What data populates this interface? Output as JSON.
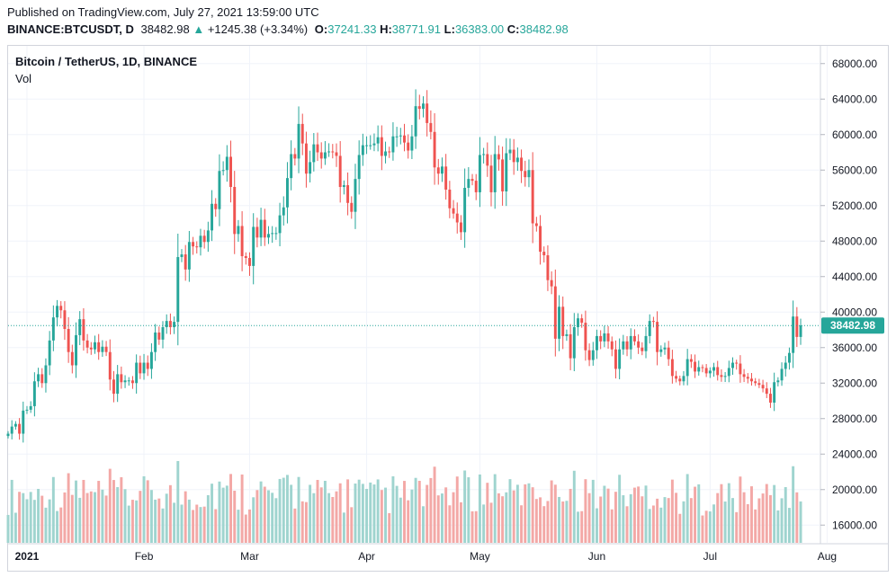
{
  "header": {
    "published": "Published on TradingView.com, July 27, 2021 13:59:00 UTC",
    "symbol": "BINANCE:BTCUSDT, D",
    "last": "38482.98",
    "change": "+1245.38 (+3.34%)",
    "open_label": "O:",
    "open": "37241.33",
    "high_label": "H:",
    "high": "38771.91",
    "low_label": "L:",
    "low": "36383.00",
    "close_label": "C:",
    "close": "38482.98"
  },
  "pane": {
    "title": "Bitcoin / TetherUS, 1D, BINANCE",
    "volume_label": "Vol",
    "price_tag": "38482.98"
  },
  "colors": {
    "up": "#26a69a",
    "down": "#ef5350",
    "up_vol": "#9fd4cf",
    "down_vol": "#f3a8a6",
    "grid": "#f0f3fa",
    "axis_text": "#131722"
  },
  "chart_data": {
    "type": "candlestick",
    "x_axis": {
      "type": "date",
      "start": "2020-12-27",
      "end": "2021-07-30",
      "ticks": [
        {
          "label": "2021",
          "date": "2021-01-01"
        },
        {
          "label": "Feb",
          "date": "2021-02-01"
        },
        {
          "label": "Mar",
          "date": "2021-03-01"
        },
        {
          "label": "Apr",
          "date": "2021-04-01"
        },
        {
          "label": "May",
          "date": "2021-05-01"
        },
        {
          "label": "Jun",
          "date": "2021-06-01"
        },
        {
          "label": "Jul",
          "date": "2021-07-01"
        },
        {
          "label": "Aug",
          "date": "2021-08-01"
        }
      ]
    },
    "y_axis": {
      "range": [
        14000,
        70000
      ],
      "ticks": [
        "16000.00",
        "20000.00",
        "24000.00",
        "28000.00",
        "32000.00",
        "36000.00",
        "40000.00",
        "44000.00",
        "48000.00",
        "52000.00",
        "56000.00",
        "60000.00",
        "64000.00",
        "68000.00"
      ],
      "position": "right"
    },
    "grid": true,
    "last_price": 38482.98,
    "close_series": {
      "start": "2020-12-27",
      "values": [
        26300,
        27100,
        27400,
        26300,
        28900,
        29000,
        29400,
        32200,
        33000,
        32000,
        34000,
        36800,
        39400,
        40700,
        40200,
        38100,
        35500,
        34000,
        37400,
        39200,
        36800,
        36000,
        35800,
        36600,
        35500,
        36100,
        35500,
        32400,
        30800,
        33000,
        32100,
        32300,
        32300,
        32000,
        34300,
        33100,
        34300,
        33600,
        35500,
        37700,
        36900,
        38300,
        39000,
        38300,
        38900,
        46200,
        46500,
        44800,
        47900,
        47400,
        47300,
        48600,
        47900,
        49200,
        52200,
        51600,
        55900,
        56000,
        57500,
        54100,
        48800,
        49700,
        46300,
        46100,
        45200,
        49600,
        48400,
        50400,
        48400,
        48800,
        48900,
        48900,
        50900,
        51800,
        55100,
        57800,
        57300,
        61200,
        59000,
        55600,
        56900,
        58900,
        58000,
        57300,
        58000,
        58100,
        58000,
        57600,
        54100,
        54300,
        52300,
        51300,
        55000,
        57700,
        58800,
        58800,
        58800,
        59000,
        59700,
        57600,
        58100,
        58000,
        59800,
        59800,
        59900,
        59100,
        58200,
        59800,
        63200,
        62900,
        63500,
        61300,
        60300,
        56300,
        55600,
        56400,
        53800,
        51700,
        51100,
        50100,
        49000,
        54000,
        55000,
        54800,
        53500,
        57700,
        57800,
        56500,
        53500,
        57800,
        57200,
        53600,
        57900,
        58300,
        56900,
        57400,
        55900,
        55200,
        56000,
        50000,
        49700,
        46800,
        46400,
        43600,
        42900,
        37000,
        40600,
        37300,
        37500,
        34800,
        38300,
        39300,
        38800,
        35700,
        34600,
        35700,
        37300,
        36700,
        37600,
        36700,
        35800,
        33600,
        35800,
        36700,
        35800,
        37300,
        36700,
        36000,
        35600,
        37300,
        39000,
        38900,
        35500,
        35800,
        36000,
        34700,
        32800,
        32500,
        32200,
        32800,
        34700,
        34400,
        33300,
        33800,
        33700,
        33100,
        33400,
        33800,
        32900,
        32700,
        32800,
        33700,
        34300,
        34200,
        33000,
        32700,
        32500,
        32200,
        32000,
        31800,
        31400,
        30800,
        29800,
        32100,
        32300,
        33600,
        34300,
        35400,
        39500,
        37200,
        38500
      ]
    },
    "volume_series": {
      "type": "bar",
      "y_range": [
        0,
        140000
      ]
    }
  }
}
